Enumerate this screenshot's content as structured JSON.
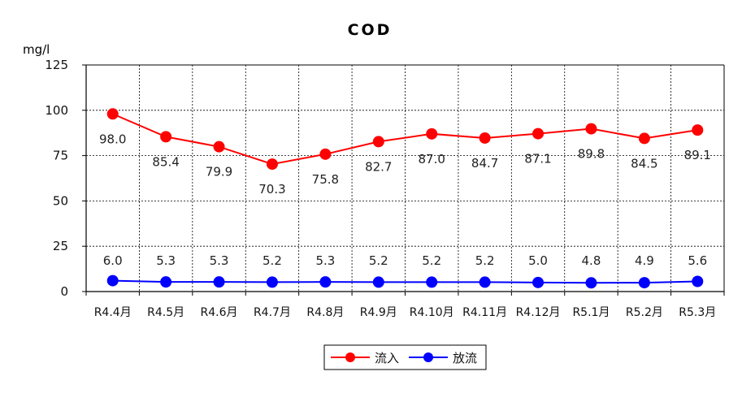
{
  "chart_data": {
    "type": "line",
    "title": "COD",
    "ylabel": "mg/l",
    "xlabel": "",
    "ylim": [
      0,
      125
    ],
    "yticks": [
      0,
      25,
      50,
      75,
      100,
      125
    ],
    "grid": true,
    "legend_position": "bottom",
    "categories": [
      "R4.4月",
      "R4.5月",
      "R4.6月",
      "R4.7月",
      "R4.8月",
      "R4.9月",
      "R4.10月",
      "R4.11月",
      "R4.12月",
      "R5.1月",
      "R5.2月",
      "R5.3月"
    ],
    "series": [
      {
        "name": "流入",
        "color": "#ff0000",
        "values": [
          98.0,
          85.4,
          79.9,
          70.3,
          75.8,
          82.7,
          87.0,
          84.7,
          87.1,
          89.8,
          84.5,
          89.1
        ],
        "labels": [
          "98.0",
          "85.4",
          "79.9",
          "70.3",
          "75.8",
          "82.7",
          "87.0",
          "84.7",
          "87.1",
          "89.8",
          "84.5",
          "89.1"
        ]
      },
      {
        "name": "放流",
        "color": "#0000ff",
        "values": [
          6.0,
          5.3,
          5.3,
          5.2,
          5.3,
          5.2,
          5.2,
          5.2,
          5.0,
          4.8,
          4.9,
          5.6
        ],
        "labels": [
          "6.0",
          "5.3",
          "5.3",
          "5.2",
          "5.3",
          "5.2",
          "5.2",
          "5.2",
          "5.0",
          "4.8",
          "4.9",
          "5.6"
        ]
      }
    ]
  }
}
